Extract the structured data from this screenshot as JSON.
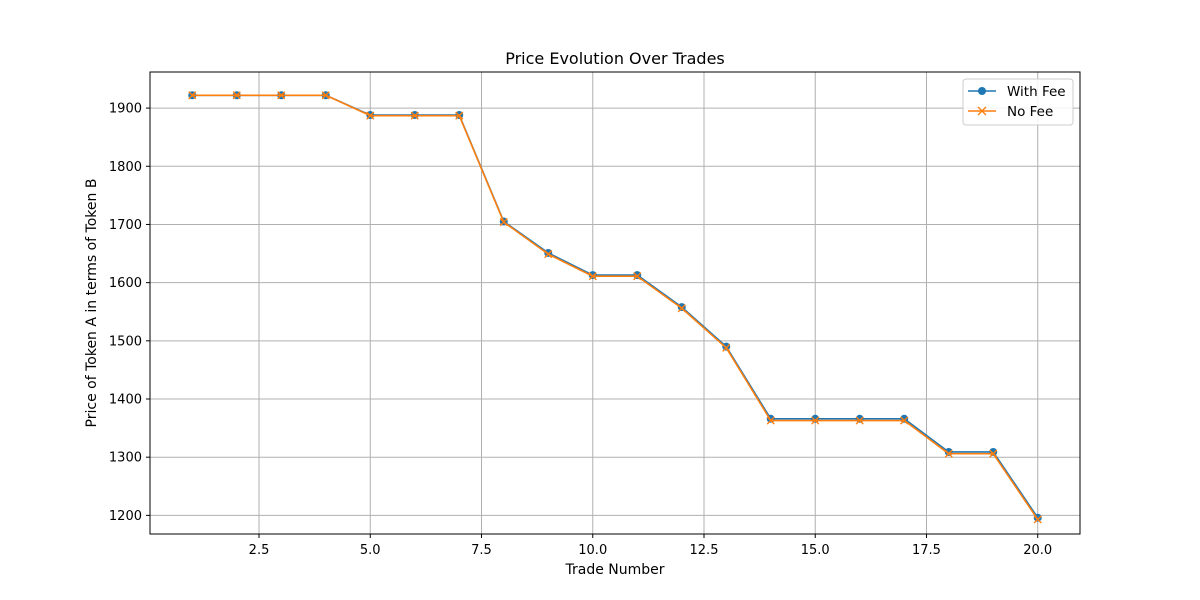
{
  "chart_data": {
    "type": "line",
    "title": "Price Evolution Over Trades",
    "xlabel": "Trade Number",
    "ylabel": "Price of Token A in terms of Token B",
    "xlim": [
      0.05,
      20.95
    ],
    "ylim": [
      1168,
      1962
    ],
    "xticks": [
      2.5,
      5.0,
      7.5,
      10.0,
      12.5,
      15.0,
      17.5,
      20.0
    ],
    "xtick_labels": [
      "2.5",
      "5.0",
      "7.5",
      "10.0",
      "12.5",
      "15.0",
      "17.5",
      "20.0"
    ],
    "yticks": [
      1200,
      1300,
      1400,
      1500,
      1600,
      1700,
      1800,
      1900
    ],
    "ytick_labels": [
      "1200",
      "1300",
      "1400",
      "1500",
      "1600",
      "1700",
      "1800",
      "1900"
    ],
    "grid": true,
    "legend": "top-right",
    "x": [
      1,
      2,
      3,
      4,
      5,
      6,
      7,
      8,
      9,
      10,
      11,
      12,
      13,
      14,
      15,
      16,
      17,
      18,
      19,
      20
    ],
    "series": [
      {
        "name": "With Fee",
        "marker": "circle",
        "color": "#1f77b4",
        "values": [
          1922,
          1922,
          1922,
          1922,
          1888,
          1888,
          1888,
          1705,
          1651,
          1613,
          1613,
          1558,
          1490,
          1366,
          1366,
          1366,
          1366,
          1309,
          1309,
          1196
        ]
      },
      {
        "name": "No Fee",
        "marker": "x",
        "color": "#ff7f0e",
        "values": [
          1922,
          1922,
          1922,
          1922,
          1887,
          1887,
          1887,
          1704,
          1649,
          1611,
          1611,
          1556,
          1488,
          1363,
          1363,
          1363,
          1363,
          1306,
          1306,
          1193
        ]
      }
    ]
  }
}
